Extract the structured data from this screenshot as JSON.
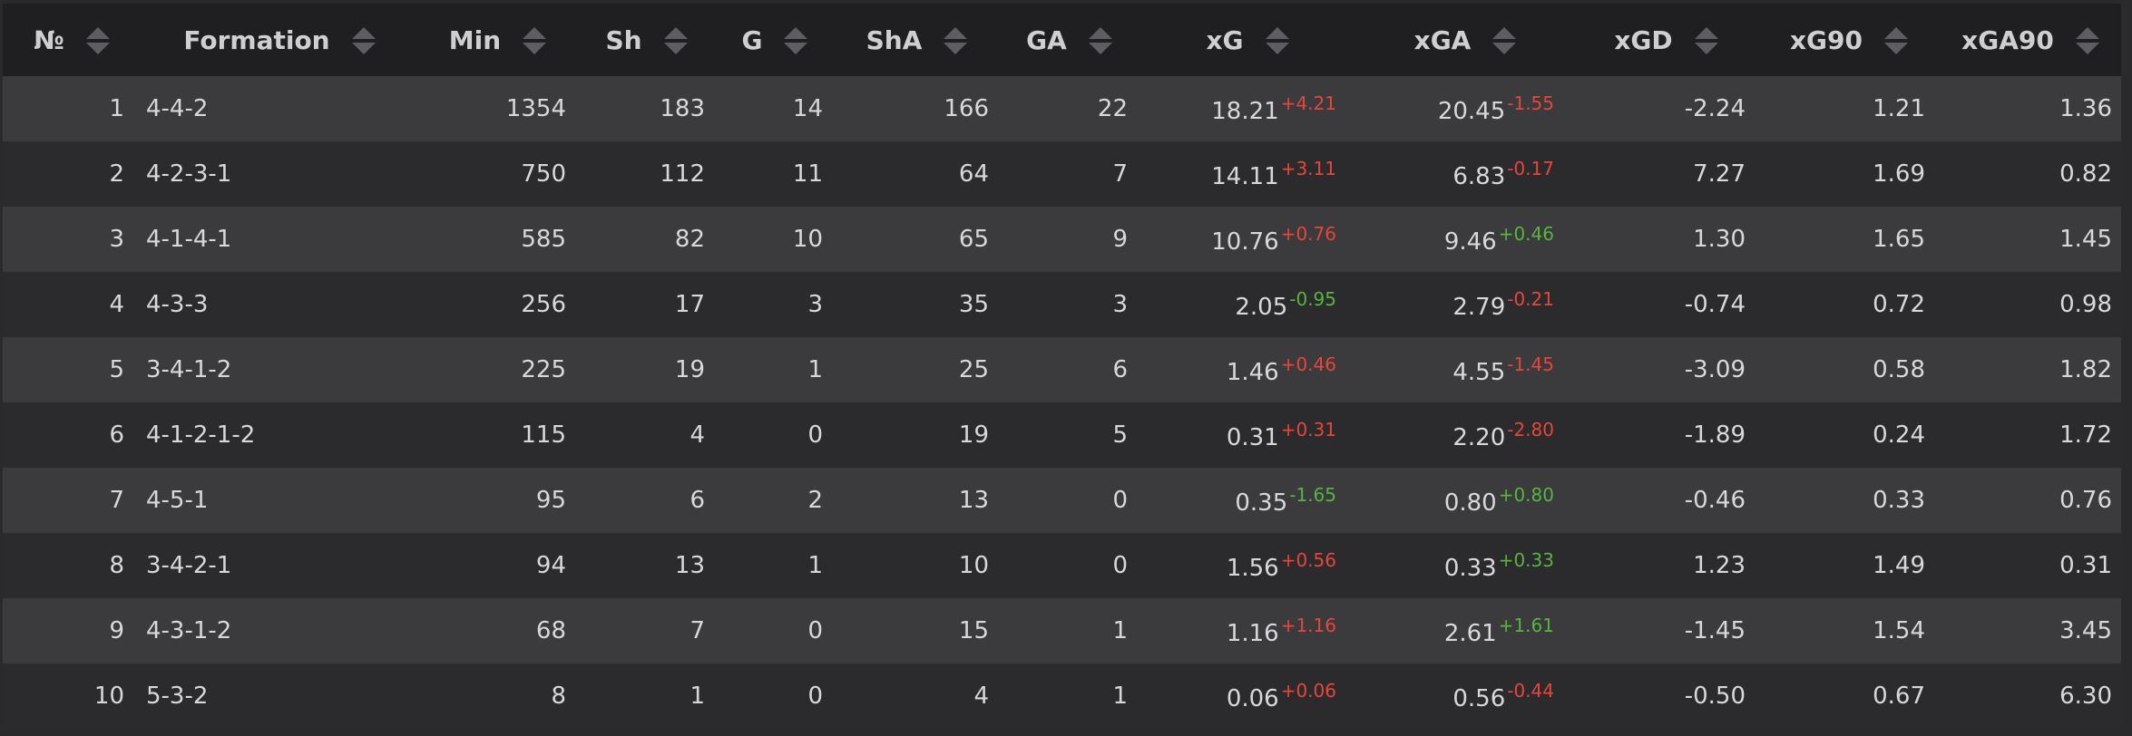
{
  "colors": {
    "delta_red": "#e4463a",
    "delta_green": "#57b43f",
    "header_bg": "#1f1f21",
    "row_light": "#3b3b3e",
    "row_dark": "#2b2b2d"
  },
  "headers": [
    "№",
    "Formation",
    "Min",
    "Sh",
    "G",
    "ShA",
    "GA",
    "xG",
    "xGA",
    "xGD",
    "xG90",
    "xGA90"
  ],
  "rows": [
    {
      "n": "1",
      "formation": "4-4-2",
      "min": "1354",
      "sh": "183",
      "g": "14",
      "sha": "166",
      "ga": "22",
      "xg": "18.21",
      "xg_delta": "+4.21",
      "xg_delta_color": "red",
      "xga": "20.45",
      "xga_delta": "-1.55",
      "xga_delta_color": "red",
      "xgd": "-2.24",
      "xg90": "1.21",
      "xga90": "1.36"
    },
    {
      "n": "2",
      "formation": "4-2-3-1",
      "min": "750",
      "sh": "112",
      "g": "11",
      "sha": "64",
      "ga": "7",
      "xg": "14.11",
      "xg_delta": "+3.11",
      "xg_delta_color": "red",
      "xga": "6.83",
      "xga_delta": "-0.17",
      "xga_delta_color": "red",
      "xgd": "7.27",
      "xg90": "1.69",
      "xga90": "0.82"
    },
    {
      "n": "3",
      "formation": "4-1-4-1",
      "min": "585",
      "sh": "82",
      "g": "10",
      "sha": "65",
      "ga": "9",
      "xg": "10.76",
      "xg_delta": "+0.76",
      "xg_delta_color": "red",
      "xga": "9.46",
      "xga_delta": "+0.46",
      "xga_delta_color": "green",
      "xgd": "1.30",
      "xg90": "1.65",
      "xga90": "1.45"
    },
    {
      "n": "4",
      "formation": "4-3-3",
      "min": "256",
      "sh": "17",
      "g": "3",
      "sha": "35",
      "ga": "3",
      "xg": "2.05",
      "xg_delta": "-0.95",
      "xg_delta_color": "green",
      "xga": "2.79",
      "xga_delta": "-0.21",
      "xga_delta_color": "red",
      "xgd": "-0.74",
      "xg90": "0.72",
      "xga90": "0.98"
    },
    {
      "n": "5",
      "formation": "3-4-1-2",
      "min": "225",
      "sh": "19",
      "g": "1",
      "sha": "25",
      "ga": "6",
      "xg": "1.46",
      "xg_delta": "+0.46",
      "xg_delta_color": "red",
      "xga": "4.55",
      "xga_delta": "-1.45",
      "xga_delta_color": "red",
      "xgd": "-3.09",
      "xg90": "0.58",
      "xga90": "1.82"
    },
    {
      "n": "6",
      "formation": "4-1-2-1-2",
      "min": "115",
      "sh": "4",
      "g": "0",
      "sha": "19",
      "ga": "5",
      "xg": "0.31",
      "xg_delta": "+0.31",
      "xg_delta_color": "red",
      "xga": "2.20",
      "xga_delta": "-2.80",
      "xga_delta_color": "red",
      "xgd": "-1.89",
      "xg90": "0.24",
      "xga90": "1.72"
    },
    {
      "n": "7",
      "formation": "4-5-1",
      "min": "95",
      "sh": "6",
      "g": "2",
      "sha": "13",
      "ga": "0",
      "xg": "0.35",
      "xg_delta": "-1.65",
      "xg_delta_color": "green",
      "xga": "0.80",
      "xga_delta": "+0.80",
      "xga_delta_color": "green",
      "xgd": "-0.46",
      "xg90": "0.33",
      "xga90": "0.76"
    },
    {
      "n": "8",
      "formation": "3-4-2-1",
      "min": "94",
      "sh": "13",
      "g": "1",
      "sha": "10",
      "ga": "0",
      "xg": "1.56",
      "xg_delta": "+0.56",
      "xg_delta_color": "red",
      "xga": "0.33",
      "xga_delta": "+0.33",
      "xga_delta_color": "green",
      "xgd": "1.23",
      "xg90": "1.49",
      "xga90": "0.31"
    },
    {
      "n": "9",
      "formation": "4-3-1-2",
      "min": "68",
      "sh": "7",
      "g": "0",
      "sha": "15",
      "ga": "1",
      "xg": "1.16",
      "xg_delta": "+1.16",
      "xg_delta_color": "red",
      "xga": "2.61",
      "xga_delta": "+1.61",
      "xga_delta_color": "green",
      "xgd": "-1.45",
      "xg90": "1.54",
      "xga90": "3.45"
    },
    {
      "n": "10",
      "formation": "5-3-2",
      "min": "8",
      "sh": "1",
      "g": "0",
      "sha": "4",
      "ga": "1",
      "xg": "0.06",
      "xg_delta": "+0.06",
      "xg_delta_color": "red",
      "xga": "0.56",
      "xga_delta": "-0.44",
      "xga_delta_color": "red",
      "xgd": "-0.50",
      "xg90": "0.67",
      "xga90": "6.30"
    }
  ]
}
